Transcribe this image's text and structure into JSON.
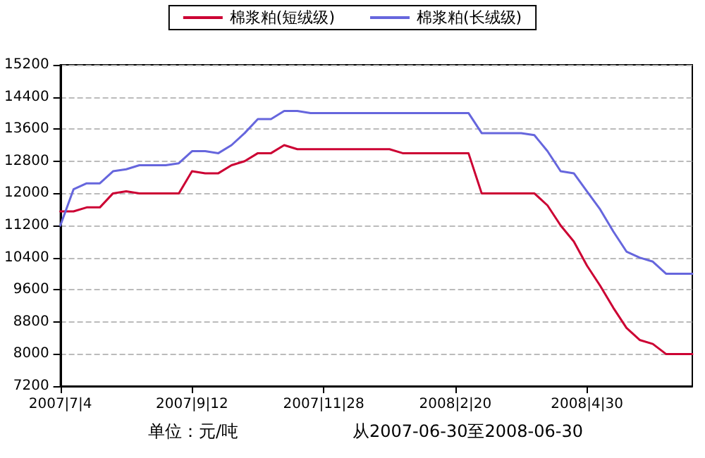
{
  "chart_data": {
    "type": "line",
    "categories": [
      "2007|7|4",
      null,
      null,
      null,
      null,
      null,
      null,
      null,
      null,
      null,
      "2007|9|12",
      null,
      null,
      null,
      null,
      null,
      null,
      null,
      null,
      null,
      "2007|11|28",
      null,
      null,
      null,
      null,
      null,
      null,
      null,
      null,
      null,
      "2008|2|20",
      null,
      null,
      null,
      null,
      null,
      null,
      null,
      null,
      null,
      "2008|4|30",
      null,
      null,
      null,
      null,
      null,
      null,
      null,
      null
    ],
    "series": [
      {
        "name": "棉浆粕(短绒级)",
        "color": "#cc0033",
        "values": [
          11550,
          11550,
          11650,
          11650,
          12000,
          12050,
          12000,
          12000,
          12000,
          12000,
          12550,
          12500,
          12500,
          12700,
          12800,
          13000,
          13000,
          13200,
          13100,
          13100,
          13100,
          13100,
          13100,
          13100,
          13100,
          13100,
          13000,
          13000,
          13000,
          13000,
          13000,
          13000,
          12000,
          12000,
          12000,
          12000,
          12000,
          11700,
          11200,
          10800,
          10200,
          9700,
          9150,
          8650,
          8350,
          8250,
          8000,
          8000,
          8000
        ]
      },
      {
        "name": "棉浆粕(长绒级)",
        "color": "#6666dd",
        "values": [
          11200,
          12100,
          12250,
          12250,
          12550,
          12600,
          12700,
          12700,
          12700,
          12750,
          13050,
          13050,
          13000,
          13200,
          13500,
          13850,
          13850,
          14050,
          14050,
          14000,
          14000,
          14000,
          14000,
          14000,
          14000,
          14000,
          14000,
          14000,
          14000,
          14000,
          14000,
          14000,
          13500,
          13500,
          13500,
          13500,
          13450,
          13050,
          12550,
          12500,
          12050,
          11600,
          11050,
          10550,
          10400,
          10300,
          10000,
          10000,
          10000
        ]
      }
    ],
    "ylim": [
      7200,
      15200
    ],
    "yticks": [
      7200,
      8000,
      8800,
      9600,
      10400,
      11200,
      12000,
      12800,
      13600,
      14400,
      15200
    ],
    "grid": "y",
    "legend": "top",
    "marker": "none",
    "line_style": "solid",
    "annotations": [
      "单位：元/吨",
      "从2007-06-30至2008-06-30"
    ]
  }
}
